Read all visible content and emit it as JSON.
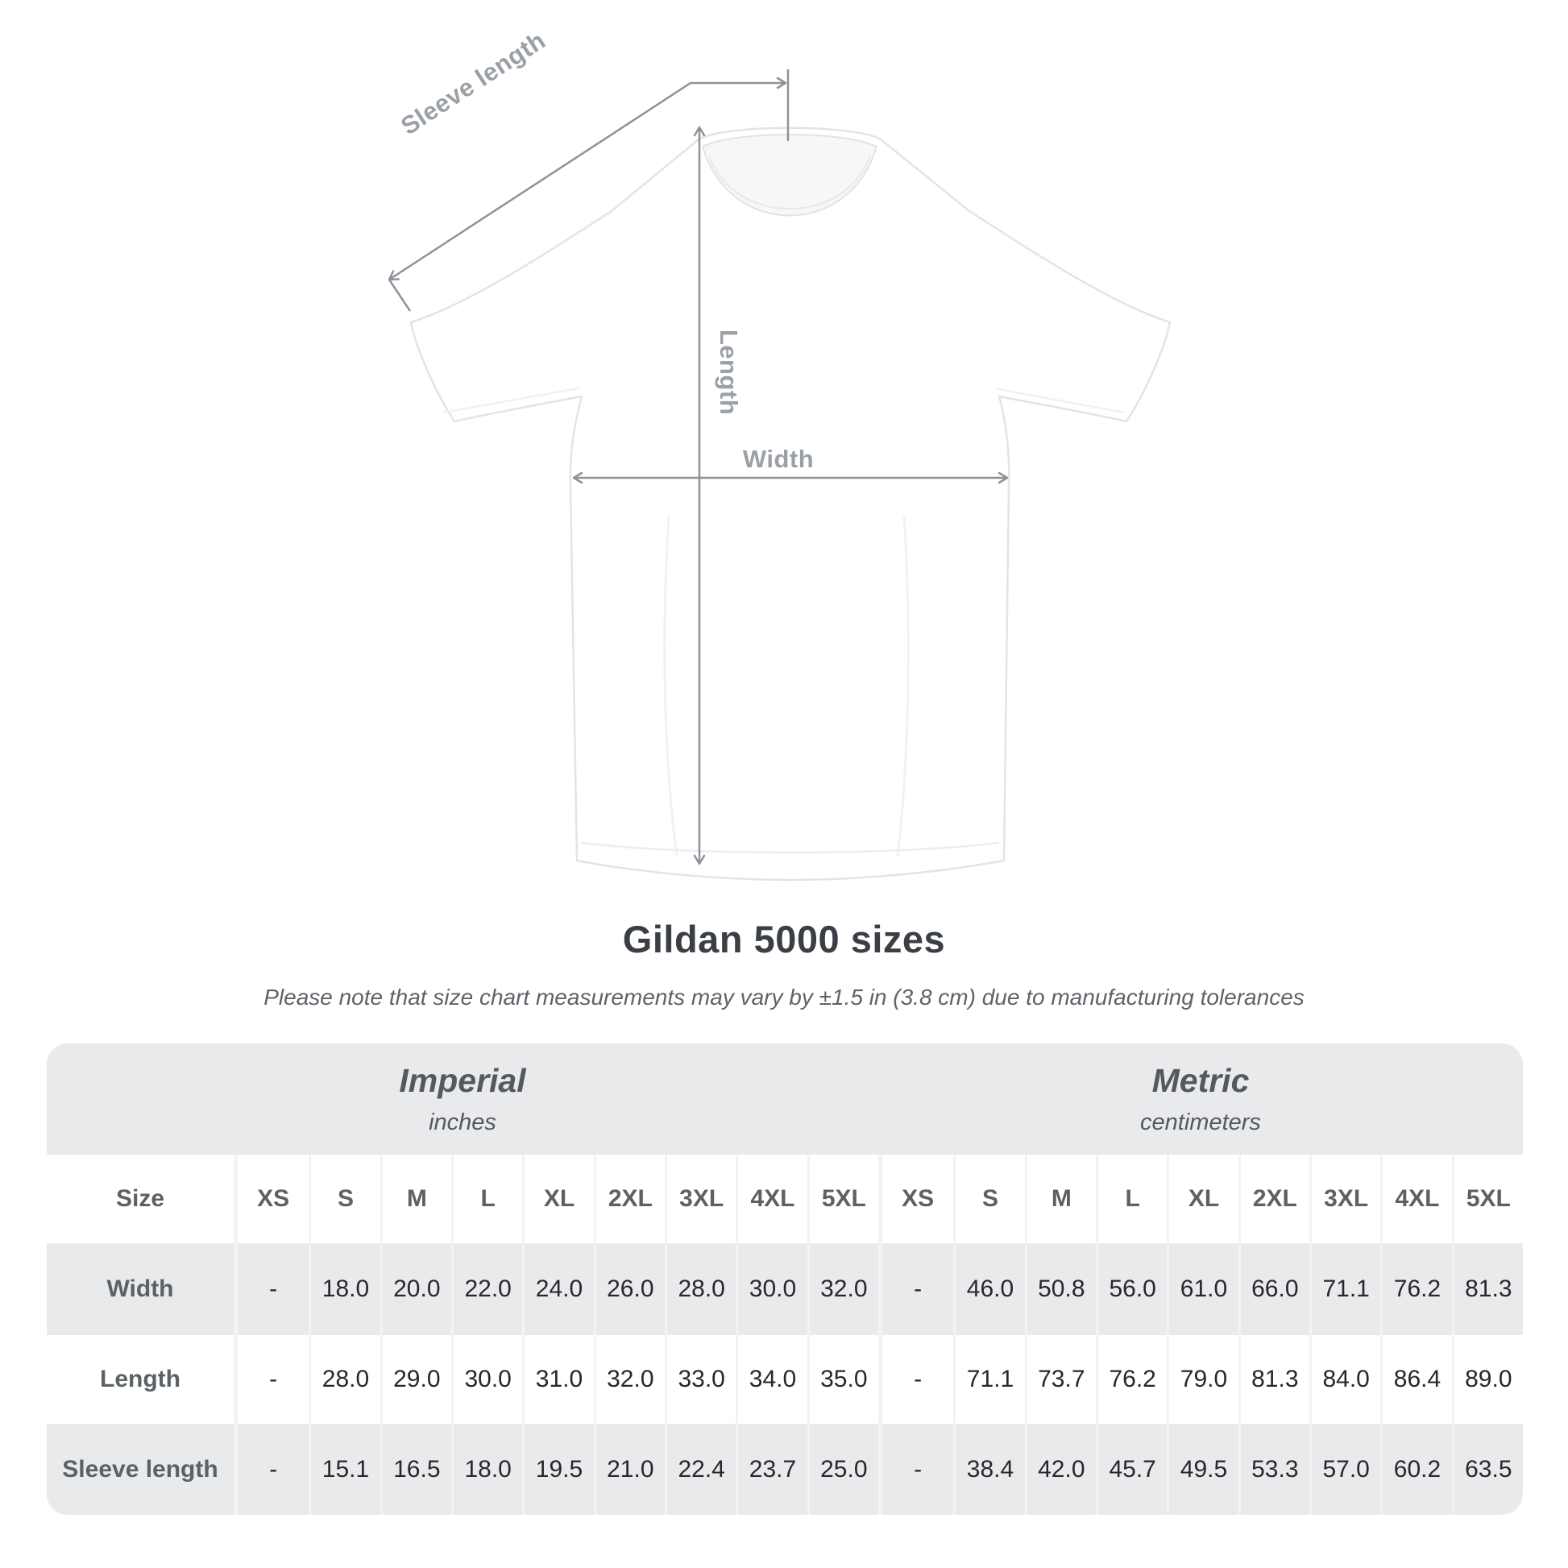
{
  "colors": {
    "annotation_line": "#8e939a",
    "annotation_label": "#9aa0a6",
    "title_text": "#3a3f45",
    "subtitle_text": "#5f6368",
    "row_gray": "#e9eaec",
    "row_white": "#ffffff",
    "separator": "#f2f3f5",
    "header_text": "#5b6165",
    "value_text": "#26282b"
  },
  "diagram": {
    "labels": {
      "sleeve_length": "Sleeve length",
      "length": "Length",
      "width": "Width"
    }
  },
  "header": {
    "title": "Gildan 5000 sizes",
    "subtitle": "Please note that size chart measurements may vary by ±1.5 in (3.8 cm) due to manufacturing tolerances"
  },
  "table": {
    "size_header": "Size",
    "sections": [
      {
        "name": "Imperial",
        "unit": "inches"
      },
      {
        "name": "Metric",
        "unit": "centimeters"
      }
    ],
    "sizes": [
      "XS",
      "S",
      "M",
      "L",
      "XL",
      "2XL",
      "3XL",
      "4XL",
      "5XL"
    ],
    "rows": [
      {
        "label": "Width",
        "imperial": [
          "-",
          "18.0",
          "20.0",
          "22.0",
          "24.0",
          "26.0",
          "28.0",
          "30.0",
          "32.0"
        ],
        "metric": [
          "-",
          "46.0",
          "50.8",
          "56.0",
          "61.0",
          "66.0",
          "71.1",
          "76.2",
          "81.3"
        ]
      },
      {
        "label": "Length",
        "imperial": [
          "-",
          "28.0",
          "29.0",
          "30.0",
          "31.0",
          "32.0",
          "33.0",
          "34.0",
          "35.0"
        ],
        "metric": [
          "-",
          "71.1",
          "73.7",
          "76.2",
          "79.0",
          "81.3",
          "84.0",
          "86.4",
          "89.0"
        ]
      },
      {
        "label": "Sleeve length",
        "imperial": [
          "-",
          "15.1",
          "16.5",
          "18.0",
          "19.5",
          "21.0",
          "22.4",
          "23.7",
          "25.0"
        ],
        "metric": [
          "-",
          "38.4",
          "42.0",
          "45.7",
          "49.5",
          "53.3",
          "57.0",
          "60.2",
          "63.5"
        ]
      }
    ]
  }
}
